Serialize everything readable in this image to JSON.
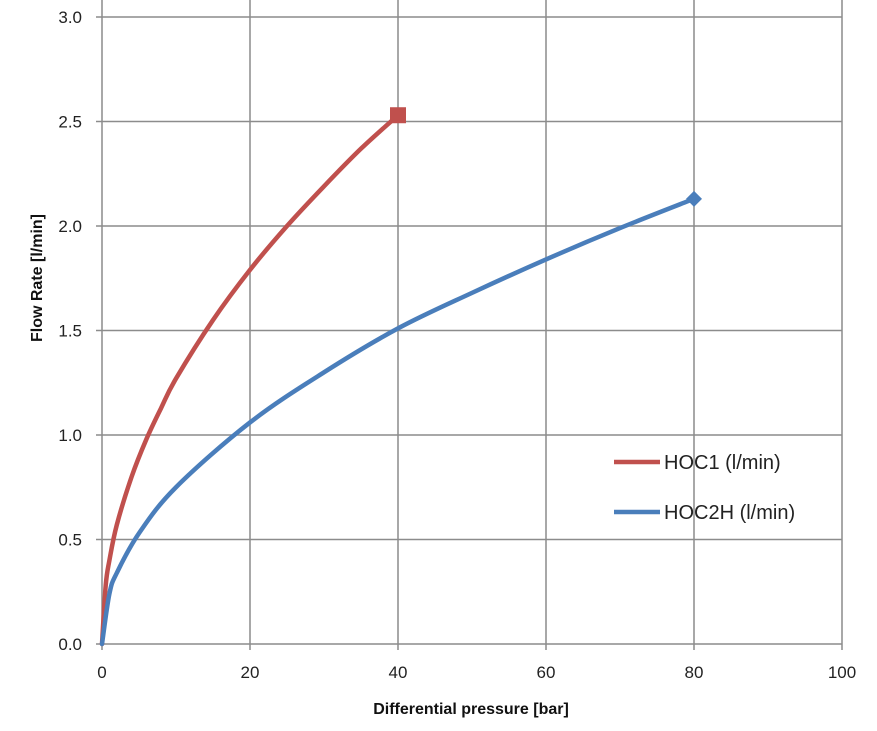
{
  "chart_data": {
    "type": "line",
    "title": "",
    "xlabel": "Differential pressure [bar]",
    "ylabel": "Flow Rate [l/min]",
    "xlim": [
      0,
      100
    ],
    "ylim": [
      0,
      3.0
    ],
    "xticks": [
      "0",
      "20",
      "40",
      "60",
      "80",
      "100"
    ],
    "yticks": [
      "0.0",
      "0.5",
      "1.0",
      "1.5",
      "2.0",
      "2.5",
      "3.0"
    ],
    "grid": true,
    "legend_position": "right",
    "series": [
      {
        "name": "HOC1 (l/min)",
        "color": "#c0504d",
        "marker": "square",
        "x": [
          0,
          0.5,
          1,
          2,
          4,
          6,
          8,
          10,
          15,
          20,
          25,
          30,
          35,
          40
        ],
        "y": [
          0,
          0.28,
          0.4,
          0.57,
          0.8,
          0.98,
          1.13,
          1.27,
          1.55,
          1.79,
          2.0,
          2.19,
          2.37,
          2.53
        ]
      },
      {
        "name": "HOC2H (l/min)",
        "color": "#4a7ebb",
        "marker": "diamond",
        "x": [
          0,
          1,
          2,
          5,
          10,
          20,
          30,
          40,
          50,
          60,
          70,
          80
        ],
        "y": [
          0,
          0.24,
          0.34,
          0.53,
          0.75,
          1.06,
          1.3,
          1.51,
          1.68,
          1.84,
          1.99,
          2.13
        ]
      }
    ]
  }
}
